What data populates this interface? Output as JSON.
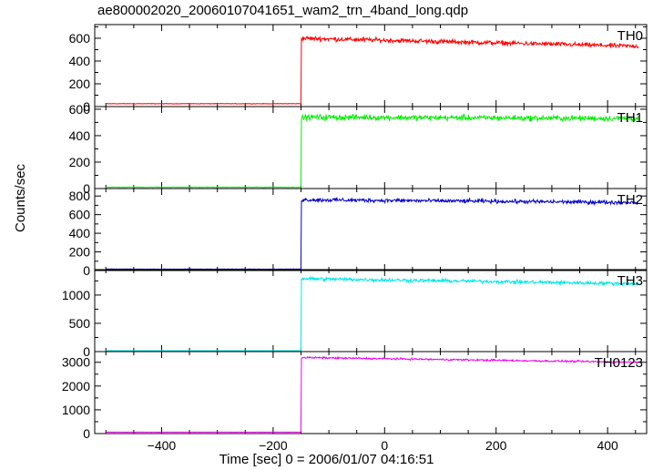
{
  "chart_data": {
    "type": "line",
    "title": "ae800002020_20060107041651_wam2_trn_4band_long.qdp",
    "xlabel": "Time [sec] 0 = 2006/01/07 04:16:51",
    "ylabel": "Counts/sec",
    "xlim": [
      -520,
      470
    ],
    "x_ticks": [
      -400,
      -200,
      0,
      200,
      400
    ],
    "x_tick_labels": [
      "−400",
      "−200",
      "0",
      "200",
      "400"
    ],
    "x_data_range": [
      -500,
      455
    ],
    "trigger_time": -150,
    "grid": false,
    "panels": [
      {
        "name": "TH0",
        "color": "#ff0000",
        "ylim": [
          0,
          720
        ],
        "y_ticks": [
          0,
          200,
          400,
          600
        ],
        "pre_level": 25,
        "peak_level": 600,
        "end_level": 530,
        "noise": 28
      },
      {
        "name": "TH1",
        "color": "#00ee00",
        "ylim": [
          0,
          620
        ],
        "y_ticks": [
          0,
          200,
          400,
          600
        ],
        "pre_level": 10,
        "peak_level": 540,
        "end_level": 530,
        "noise": 30
      },
      {
        "name": "TH2",
        "color": "#0000cc",
        "ylim": [
          0,
          880
        ],
        "y_ticks": [
          0,
          200,
          400,
          600,
          800
        ],
        "pre_level": 15,
        "peak_level": 760,
        "end_level": 730,
        "noise": 30
      },
      {
        "name": "TH3",
        "color": "#00e5e5",
        "ylim": [
          0,
          1450
        ],
        "y_ticks": [
          0,
          500,
          1000
        ],
        "pre_level": 10,
        "peak_level": 1290,
        "end_level": 1200,
        "noise": 45
      },
      {
        "name": "TH0123",
        "color": "#ee00ee",
        "ylim": [
          0,
          3450
        ],
        "y_ticks": [
          0,
          1000,
          2000,
          3000
        ],
        "pre_level": 60,
        "peak_level": 3200,
        "end_level": 3000,
        "noise": 55
      }
    ]
  }
}
